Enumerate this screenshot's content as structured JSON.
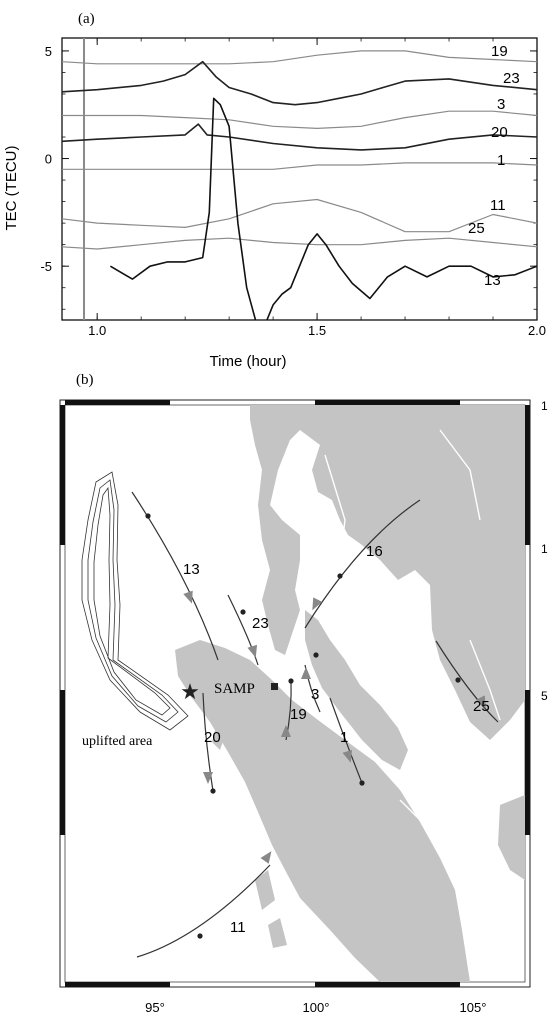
{
  "chart_data": [
    {
      "type": "line",
      "panel_label": "(a)",
      "xlabel": "Time (hour)",
      "ylabel": "TEC (TECU)",
      "xlim": [
        0.92,
        2.0
      ],
      "ylim": [
        -7.5,
        5.6
      ],
      "xticks": [
        1.0,
        1.5,
        2.0
      ],
      "xtick_labels": [
        "1.0",
        "1.5",
        "2.0"
      ],
      "yticks": [
        5,
        0,
        -5
      ],
      "ytick_labels": [
        "5",
        "0",
        "-5"
      ],
      "event_marker_x": 0.97,
      "series": [
        {
          "name": "19",
          "color": "#8a8a8a",
          "width": 1.2,
          "x": [
            0.92,
            1.0,
            1.1,
            1.2,
            1.25,
            1.3,
            1.4,
            1.5,
            1.6,
            1.7,
            1.8,
            1.9,
            2.0
          ],
          "y": [
            4.5,
            4.4,
            4.4,
            4.4,
            4.4,
            4.4,
            4.5,
            4.8,
            5.0,
            5.0,
            4.7,
            4.6,
            4.5
          ]
        },
        {
          "name": "23",
          "color": "#222222",
          "width": 1.6,
          "x": [
            0.92,
            1.0,
            1.1,
            1.15,
            1.2,
            1.24,
            1.27,
            1.3,
            1.35,
            1.4,
            1.45,
            1.5,
            1.55,
            1.6,
            1.65,
            1.7,
            1.8,
            1.9,
            2.0
          ],
          "y": [
            3.1,
            3.2,
            3.4,
            3.6,
            3.9,
            4.5,
            3.8,
            3.3,
            3.0,
            2.6,
            2.5,
            2.6,
            2.8,
            3.0,
            3.3,
            3.6,
            3.7,
            3.4,
            3.2
          ]
        },
        {
          "name": "3",
          "color": "#8a8a8a",
          "width": 1.2,
          "x": [
            0.92,
            1.0,
            1.1,
            1.2,
            1.3,
            1.4,
            1.5,
            1.6,
            1.7,
            1.8,
            1.9,
            2.0
          ],
          "y": [
            2.0,
            2.0,
            2.0,
            1.9,
            1.8,
            1.5,
            1.4,
            1.5,
            1.9,
            2.2,
            2.2,
            2.0
          ]
        },
        {
          "name": "20",
          "color": "#222222",
          "width": 1.6,
          "x": [
            0.92,
            1.0,
            1.1,
            1.2,
            1.23,
            1.25,
            1.3,
            1.4,
            1.5,
            1.6,
            1.7,
            1.8,
            1.9,
            2.0
          ],
          "y": [
            0.8,
            0.9,
            1.0,
            1.1,
            1.6,
            1.1,
            1.0,
            0.7,
            0.5,
            0.4,
            0.5,
            0.9,
            1.1,
            1.0
          ]
        },
        {
          "name": "1",
          "color": "#8a8a8a",
          "width": 1.2,
          "x": [
            0.92,
            1.0,
            1.1,
            1.2,
            1.3,
            1.4,
            1.5,
            1.6,
            1.7,
            1.8,
            1.9,
            2.0
          ],
          "y": [
            -0.5,
            -0.5,
            -0.5,
            -0.5,
            -0.5,
            -0.5,
            -0.3,
            -0.3,
            -0.2,
            -0.2,
            -0.2,
            -0.3
          ]
        },
        {
          "name": "11",
          "color": "#8a8a8a",
          "width": 1.2,
          "x": [
            0.92,
            1.0,
            1.1,
            1.2,
            1.3,
            1.4,
            1.5,
            1.6,
            1.7,
            1.8,
            1.9,
            2.0
          ],
          "y": [
            -2.8,
            -3.0,
            -3.1,
            -3.2,
            -2.8,
            -2.1,
            -1.9,
            -2.5,
            -3.4,
            -3.4,
            -2.6,
            -3.0
          ]
        },
        {
          "name": "25",
          "color": "#8a8a8a",
          "width": 1.2,
          "x": [
            0.92,
            1.0,
            1.1,
            1.2,
            1.3,
            1.4,
            1.5,
            1.6,
            1.7,
            1.8,
            1.9,
            2.0
          ],
          "y": [
            -4.1,
            -4.2,
            -4.0,
            -3.8,
            -3.7,
            -3.9,
            -4.0,
            -4.0,
            -3.8,
            -3.7,
            -3.9,
            -4.1
          ]
        },
        {
          "name": "13",
          "color": "#111111",
          "width": 1.6,
          "x": [
            1.03,
            1.08,
            1.12,
            1.16,
            1.2,
            1.24,
            1.255,
            1.265,
            1.28,
            1.3,
            1.32,
            1.34,
            1.36,
            1.38,
            1.4,
            1.42,
            1.44,
            1.46,
            1.48,
            1.5,
            1.52,
            1.55,
            1.58,
            1.62,
            1.66,
            1.7,
            1.75,
            1.8,
            1.85,
            1.9,
            1.95,
            2.0
          ],
          "y": [
            -5.0,
            -5.6,
            -5.0,
            -4.8,
            -4.8,
            -4.6,
            -2.5,
            2.8,
            2.5,
            1.5,
            -3.0,
            -6.0,
            -7.5,
            -7.8,
            -6.8,
            -6.3,
            -6.0,
            -5.0,
            -4.0,
            -3.5,
            -4.0,
            -5.0,
            -5.8,
            -6.5,
            -5.5,
            -5.0,
            -5.5,
            -5.0,
            -5.0,
            -5.5,
            -5.4,
            -5.0
          ]
        }
      ]
    },
    {
      "type": "map",
      "panel_label": "(b)",
      "lon_range": [
        91.5,
        107.5
      ],
      "lat_range": [
        -5.5,
        18.5
      ],
      "xticks": [
        95,
        100,
        105
      ],
      "xtick_labels": [
        "95°",
        "100°",
        "105°"
      ],
      "right_tick_labels": [
        "1",
        "1",
        "5",
        ""
      ],
      "station_label": "SAMP",
      "uplift_label": "uplifted area",
      "satellite_tracks": [
        {
          "name": "13"
        },
        {
          "name": "16"
        },
        {
          "name": "23"
        },
        {
          "name": "3"
        },
        {
          "name": "19"
        },
        {
          "name": "1"
        },
        {
          "name": "25"
        },
        {
          "name": "20"
        },
        {
          "name": "11"
        }
      ]
    }
  ]
}
